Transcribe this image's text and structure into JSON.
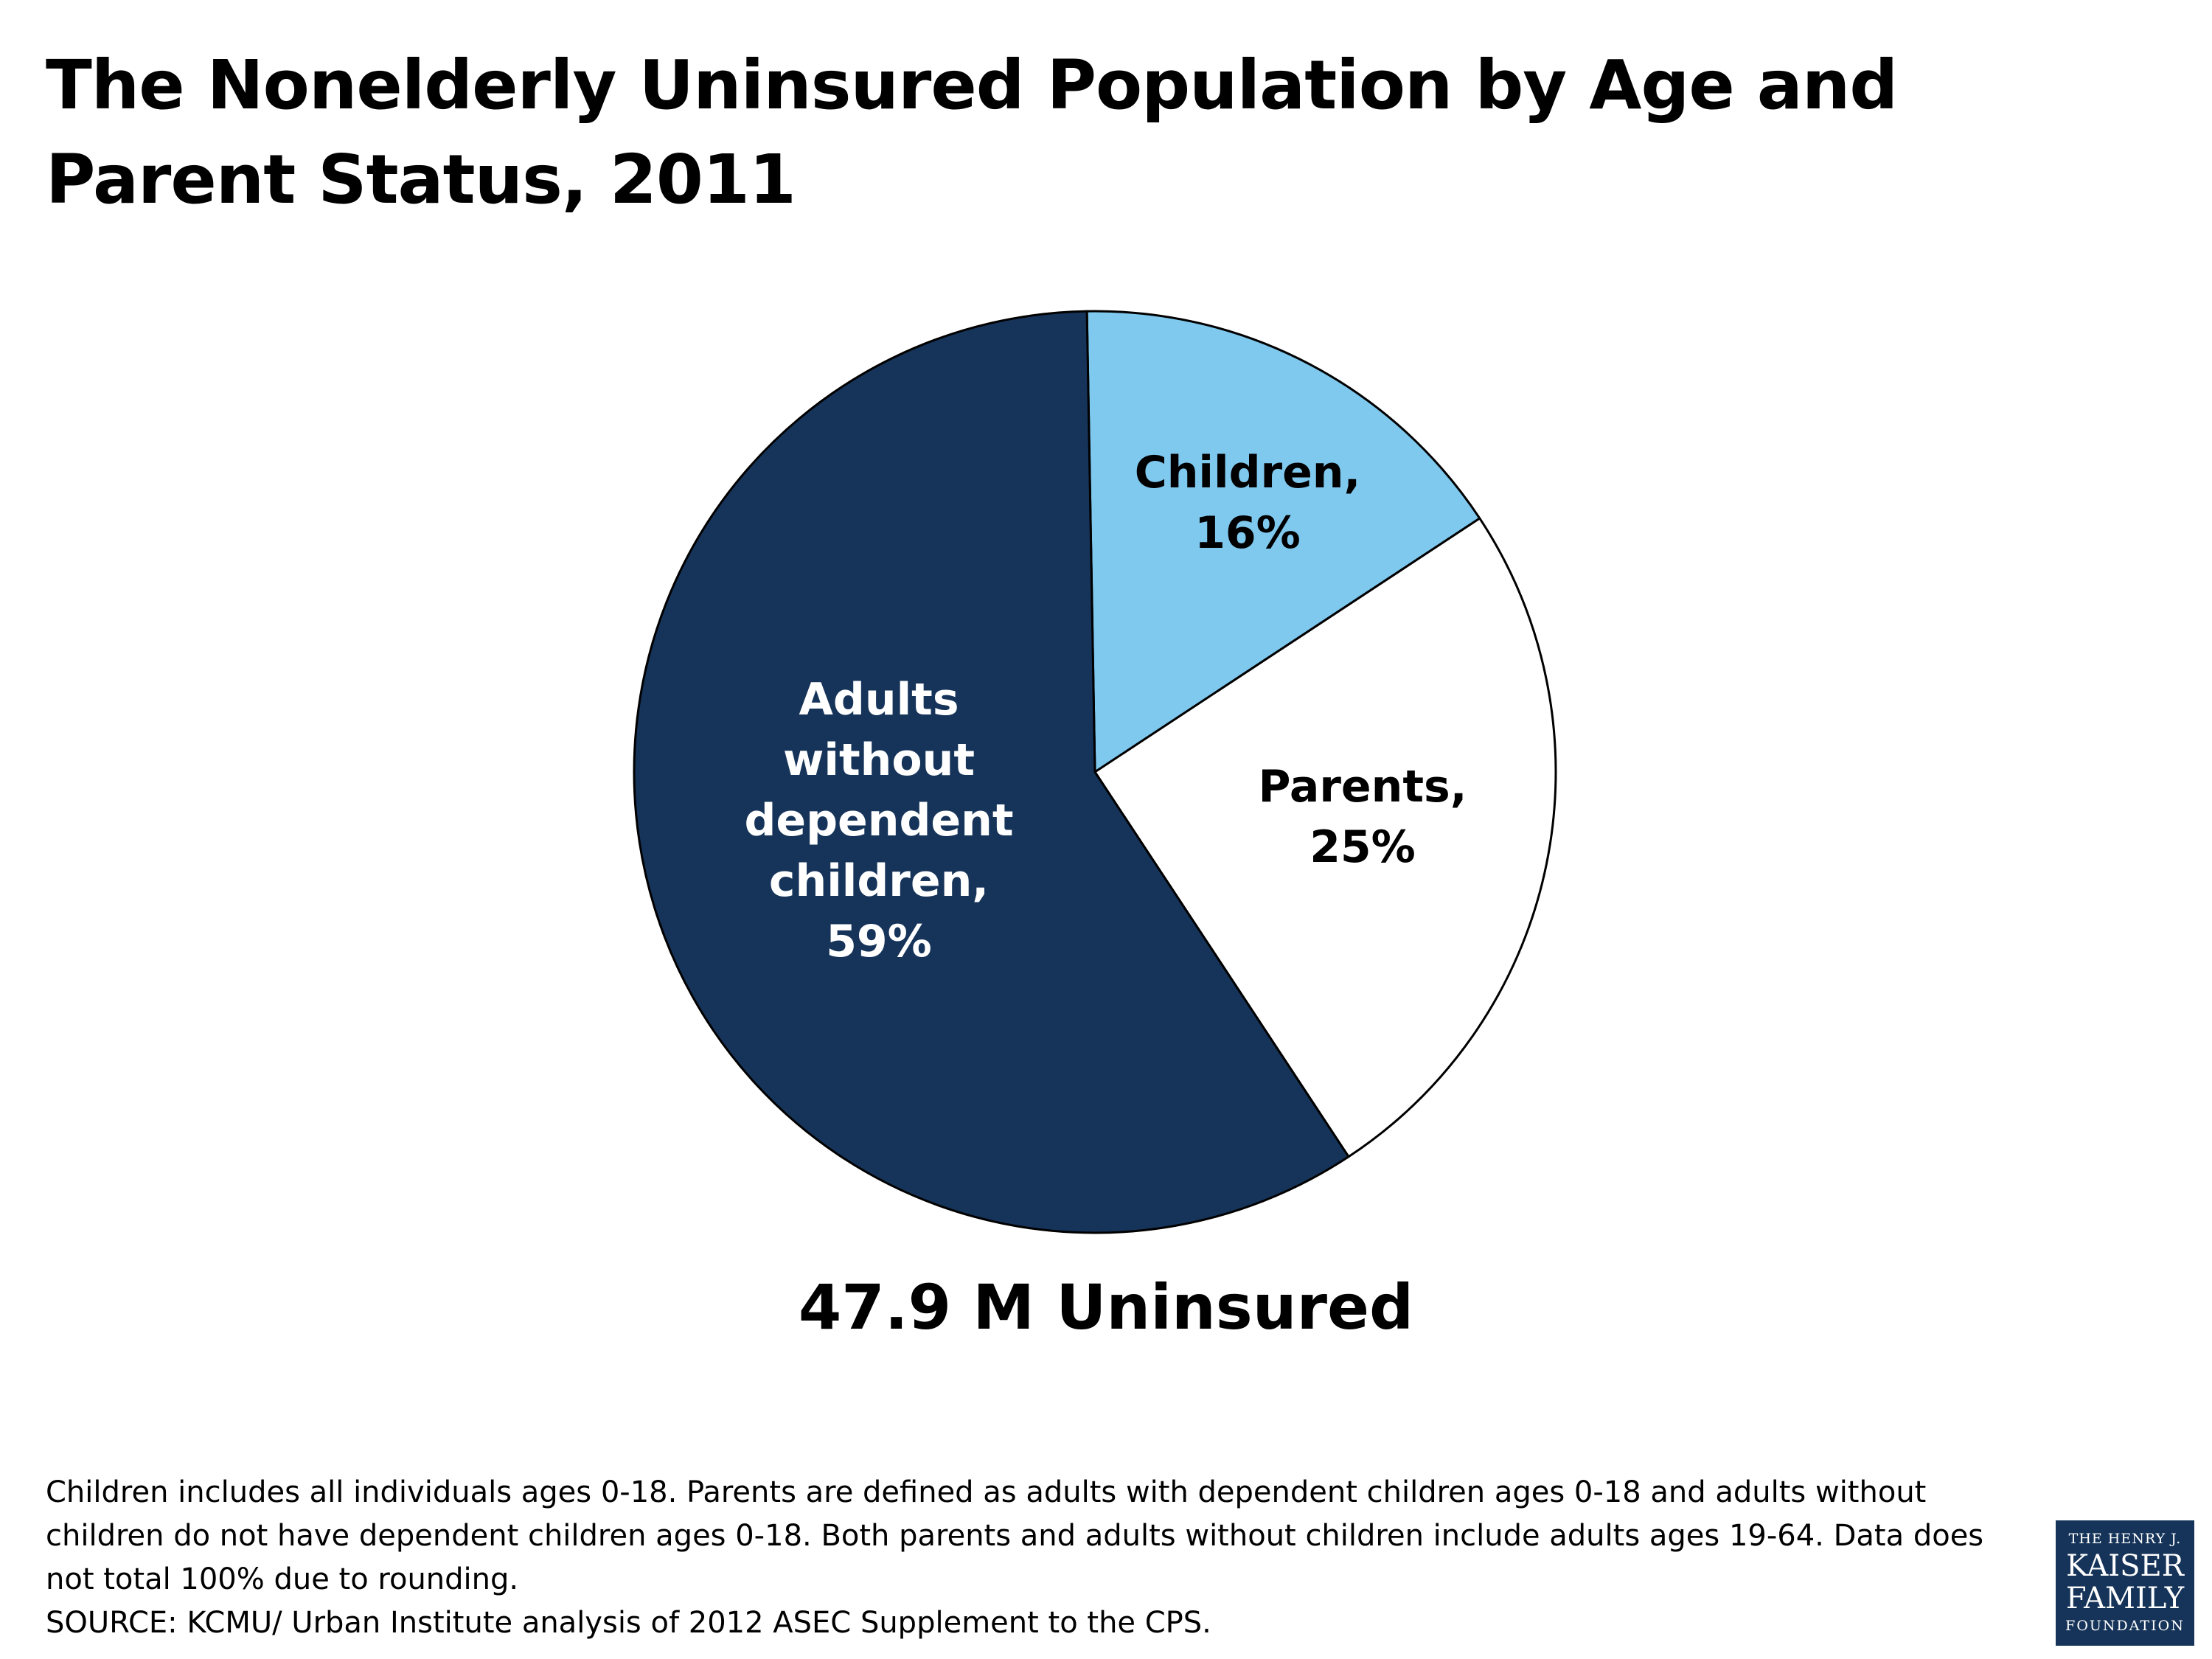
{
  "title": "The Nonelderly Uninsured Population by Age and Parent Status, 2011",
  "chart_data": {
    "type": "pie",
    "start_angle_deg": -1,
    "direction": "clockwise",
    "slices": [
      {
        "label_lines": [
          "Children,",
          "16%"
        ],
        "name": "Children",
        "value": 16,
        "color": "#7fc8ee",
        "label_color": "#000000"
      },
      {
        "label_lines": [
          "Parents,",
          "25%"
        ],
        "name": "Parents",
        "value": 25,
        "color": "#ffffff",
        "label_color": "#000000"
      },
      {
        "label_lines": [
          "Adults",
          "without",
          "dependent",
          "children,",
          "59%"
        ],
        "name": "Adults without dependent children",
        "value": 59,
        "color": "#163459",
        "label_color": "#ffffff"
      }
    ],
    "outline_color": "#000000"
  },
  "total_label": "47.9 M Uninsured",
  "notes": {
    "line1": "Children includes all individuals ages 0-18. Parents are defined as adults with dependent children ages 0-18 and adults without",
    "line2": "children do not have dependent children ages 0-18. Both parents and adults without children include adults ages 19-64. Data does",
    "line3": "not total 100% due to rounding.",
    "source": "SOURCE: KCMU/ Urban Institute analysis of 2012 ASEC Supplement to the CPS."
  },
  "logo": {
    "line1": "THE HENRY J.",
    "line2": "KAISER",
    "line3": "FAMILY",
    "line4": "FOUNDATION"
  }
}
